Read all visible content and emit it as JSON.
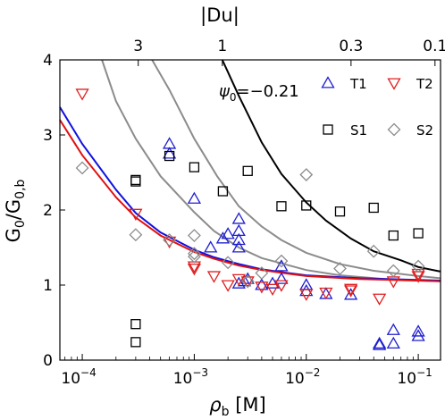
{
  "chart_data": {
    "type": "scatter",
    "xscale": "log",
    "xlim": [
      6.31e-05,
      0.158
    ],
    "ylim": [
      0,
      4
    ],
    "xlabel_main": "ρ",
    "xlabel_sub": "b",
    "xlabel_unit": " [M]",
    "ylabel_main": "G",
    "ylabel_sub1": "0",
    "ylabel_mid": "/G",
    "ylabel_sub2": "0,b",
    "top_axis_label": "|Du|",
    "x_ticks": [
      {
        "value": 0.0001,
        "base": "10",
        "exp": "−4"
      },
      {
        "value": 0.001,
        "base": "10",
        "exp": "−3"
      },
      {
        "value": 0.01,
        "base": "10",
        "exp": "−2"
      },
      {
        "value": 0.1,
        "base": "10",
        "exp": "−1"
      }
    ],
    "y_ticks": [
      "0",
      "1",
      "2",
      "3",
      "4"
    ],
    "top_ticks": [
      {
        "label": "3",
        "x": 0.000316
      },
      {
        "label": "1",
        "x": 0.00178
      },
      {
        "label": "0.3",
        "x": 0.0251
      },
      {
        "label": "0.1",
        "x": 0.141
      }
    ],
    "annotation": {
      "symbol": "ψ",
      "sub": "0",
      "text": "=−0.21"
    },
    "colors": {
      "T1": "#1f1fd0",
      "T2": "#e02020",
      "S1": "#000000",
      "S2": "#8c8c8c",
      "line_black": "#000000",
      "line_gray": "#8c8c8c",
      "line_blue": "#1010e0",
      "line_red": "#e01010"
    },
    "legend": [
      {
        "name": "T1",
        "marker": "triangle-up",
        "color": "#1f1fd0"
      },
      {
        "name": "T2",
        "marker": "triangle-down",
        "color": "#e02020"
      },
      {
        "name": "S1",
        "marker": "square",
        "color": "#000000"
      },
      {
        "name": "S2",
        "marker": "diamond",
        "color": "#8c8c8c"
      }
    ],
    "series": [
      {
        "name": "T1",
        "marker": "triangle-up",
        "color": "#1f1fd0",
        "points": [
          [
            0.0006,
            2.88
          ],
          [
            0.0006,
            2.75
          ],
          [
            0.001,
            2.15
          ],
          [
            0.0014,
            1.5
          ],
          [
            0.0018,
            1.62
          ],
          [
            0.002,
            1.68
          ],
          [
            0.0025,
            1.88
          ],
          [
            0.0025,
            1.72
          ],
          [
            0.0025,
            1.6
          ],
          [
            0.0025,
            1.5
          ],
          [
            0.0025,
            1.02
          ],
          [
            0.0028,
            1.05
          ],
          [
            0.003,
            1.08
          ],
          [
            0.004,
            1.0
          ],
          [
            0.005,
            1.02
          ],
          [
            0.006,
            1.08
          ],
          [
            0.006,
            1.25
          ],
          [
            0.01,
            1.0
          ],
          [
            0.01,
            0.92
          ],
          [
            0.015,
            0.88
          ],
          [
            0.025,
            0.87
          ],
          [
            0.045,
            0.22
          ],
          [
            0.045,
            0.2
          ],
          [
            0.06,
            0.4
          ],
          [
            0.06,
            0.22
          ],
          [
            0.1,
            0.38
          ],
          [
            0.1,
            0.32
          ]
        ]
      },
      {
        "name": "T2",
        "marker": "triangle-down",
        "color": "#e02020",
        "points": [
          [
            0.0001,
            3.55
          ],
          [
            0.0003,
            1.95
          ],
          [
            0.0006,
            1.58
          ],
          [
            0.001,
            1.22
          ],
          [
            0.001,
            1.25
          ],
          [
            0.0015,
            1.12
          ],
          [
            0.002,
            1.0
          ],
          [
            0.0025,
            1.08
          ],
          [
            0.003,
            1.05
          ],
          [
            0.004,
            0.98
          ],
          [
            0.005,
            0.95
          ],
          [
            0.006,
            1.0
          ],
          [
            0.01,
            0.88
          ],
          [
            0.015,
            0.9
          ],
          [
            0.025,
            0.95
          ],
          [
            0.025,
            0.93
          ],
          [
            0.045,
            0.82
          ],
          [
            0.06,
            1.05
          ],
          [
            0.1,
            1.15
          ],
          [
            0.1,
            1.12
          ]
        ]
      },
      {
        "name": "S1",
        "marker": "square",
        "color": "#000000",
        "points": [
          [
            0.0003,
            2.4
          ],
          [
            0.0003,
            2.38
          ],
          [
            0.0003,
            0.48
          ],
          [
            0.0003,
            0.24
          ],
          [
            0.0006,
            2.72
          ],
          [
            0.001,
            2.57
          ],
          [
            0.0018,
            2.25
          ],
          [
            0.003,
            2.52
          ],
          [
            0.006,
            2.05
          ],
          [
            0.01,
            2.06
          ],
          [
            0.02,
            1.98
          ],
          [
            0.04,
            2.03
          ],
          [
            0.06,
            1.66
          ],
          [
            0.1,
            1.69
          ]
        ]
      },
      {
        "name": "S2",
        "marker": "diamond",
        "color": "#8c8c8c",
        "points": [
          [
            0.0001,
            2.56
          ],
          [
            0.0003,
            1.67
          ],
          [
            0.0006,
            1.6
          ],
          [
            0.001,
            1.66
          ],
          [
            0.001,
            1.42
          ],
          [
            0.001,
            1.38
          ],
          [
            0.002,
            1.3
          ],
          [
            0.003,
            1.05
          ],
          [
            0.004,
            1.16
          ],
          [
            0.006,
            1.32
          ],
          [
            0.01,
            2.47
          ],
          [
            0.02,
            1.22
          ],
          [
            0.04,
            1.45
          ],
          [
            0.06,
            1.19
          ],
          [
            0.1,
            1.25
          ]
        ]
      }
    ],
    "curves": [
      {
        "color": "#000000",
        "points": [
          [
            0.00178,
            4.0
          ],
          [
            0.0025,
            3.52
          ],
          [
            0.004,
            2.9
          ],
          [
            0.006,
            2.48
          ],
          [
            0.01,
            2.1
          ],
          [
            0.015,
            1.86
          ],
          [
            0.025,
            1.62
          ],
          [
            0.04,
            1.45
          ],
          [
            0.07,
            1.33
          ],
          [
            0.1,
            1.24
          ],
          [
            0.158,
            1.18
          ]
        ]
      },
      {
        "color": "#8c8c8c",
        "points": [
          [
            0.00042,
            4.0
          ],
          [
            0.0006,
            3.6
          ],
          [
            0.001,
            2.95
          ],
          [
            0.0016,
            2.45
          ],
          [
            0.0025,
            2.05
          ],
          [
            0.004,
            1.78
          ],
          [
            0.006,
            1.6
          ],
          [
            0.01,
            1.43
          ],
          [
            0.02,
            1.28
          ],
          [
            0.04,
            1.19
          ],
          [
            0.1,
            1.12
          ],
          [
            0.158,
            1.09
          ]
        ]
      },
      {
        "color": "#8c8c8c",
        "points": [
          [
            0.00015,
            4.0
          ],
          [
            0.0002,
            3.45
          ],
          [
            0.0003,
            2.95
          ],
          [
            0.0005,
            2.45
          ],
          [
            0.001,
            1.97
          ],
          [
            0.0015,
            1.72
          ],
          [
            0.0025,
            1.5
          ],
          [
            0.004,
            1.36
          ],
          [
            0.01,
            1.2
          ],
          [
            0.02,
            1.13
          ],
          [
            0.05,
            1.08
          ],
          [
            0.158,
            1.05
          ]
        ]
      },
      {
        "color": "#1010e0",
        "points": [
          [
            6.31e-05,
            3.37
          ],
          [
            0.0001,
            2.88
          ],
          [
            0.0002,
            2.27
          ],
          [
            0.0003,
            1.96
          ],
          [
            0.0005,
            1.7
          ],
          [
            0.001,
            1.47
          ],
          [
            0.0015,
            1.37
          ],
          [
            0.0025,
            1.28
          ],
          [
            0.004,
            1.21
          ],
          [
            0.007,
            1.16
          ],
          [
            0.01,
            1.13
          ],
          [
            0.03,
            1.09
          ],
          [
            0.158,
            1.06
          ]
        ]
      },
      {
        "color": "#e01010",
        "points": [
          [
            6.31e-05,
            3.2
          ],
          [
            0.0001,
            2.73
          ],
          [
            0.0002,
            2.17
          ],
          [
            0.0003,
            1.9
          ],
          [
            0.0005,
            1.66
          ],
          [
            0.001,
            1.44
          ],
          [
            0.0015,
            1.35
          ],
          [
            0.0025,
            1.26
          ],
          [
            0.004,
            1.2
          ],
          [
            0.007,
            1.15
          ],
          [
            0.01,
            1.12
          ],
          [
            0.03,
            1.08
          ],
          [
            0.158,
            1.05
          ]
        ]
      }
    ]
  }
}
